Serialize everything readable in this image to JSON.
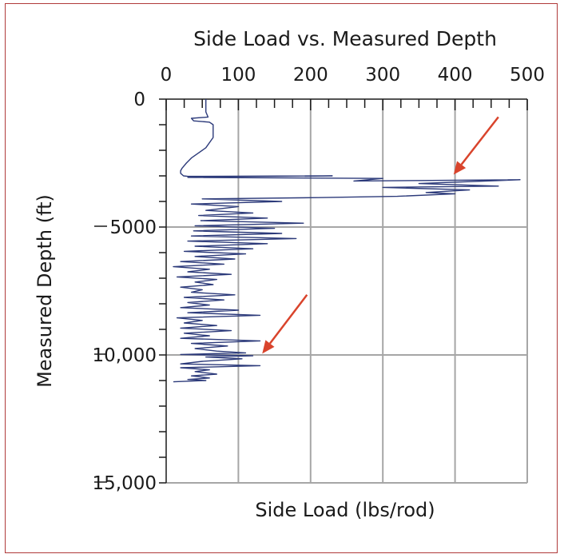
{
  "chart_data": {
    "type": "line",
    "title": "Side Load vs. Measured Depth",
    "xlabel": "Side Load (lbs/rod)",
    "ylabel": "Measured Depth (ft)",
    "xlim": [
      0,
      500
    ],
    "ylim": [
      0,
      -15000
    ],
    "x_ticks": [
      0,
      100,
      200,
      300,
      400,
      500
    ],
    "x_tick_labels": [
      "0",
      "100",
      "200",
      "300",
      "400",
      "500"
    ],
    "y_ticks": [
      0,
      -5000,
      -10000,
      -15000
    ],
    "y_tick_labels": [
      "0",
      "5000",
      "10,000",
      "15,000"
    ],
    "x_axis_position": "top",
    "grid": true,
    "colors": {
      "series": "#2c3a7a",
      "arrow": "#d9442c",
      "grid": "#a6a6a6",
      "frame": "#b03a3a"
    },
    "series": [
      {
        "x": [
          55,
          55,
          58,
          35,
          38,
          60,
          65,
          65,
          55,
          45,
          35,
          28,
          22,
          20,
          20,
          22,
          24,
          30,
          230,
          30,
          300,
          260,
          490,
          350,
          460,
          300,
          420,
          360,
          400,
          320,
          210,
          50,
          160,
          35,
          100,
          55,
          120,
          45,
          140,
          48,
          190,
          40,
          150,
          38,
          160,
          35,
          180,
          30,
          140,
          40,
          120,
          25,
          110,
          40,
          95,
          20,
          80,
          10,
          60,
          30,
          90,
          15,
          70,
          40,
          65,
          20,
          50,
          35,
          95,
          25,
          80,
          30,
          60,
          20,
          100,
          30,
          130,
          15,
          50,
          25,
          70,
          20,
          90,
          25,
          60,
          20,
          130,
          35,
          85,
          40,
          70,
          110,
          20,
          120,
          55,
          105,
          50,
          20,
          130,
          20,
          60,
          40,
          70,
          35,
          60,
          30,
          55,
          10
        ],
        "y": [
          0,
          -500,
          -700,
          -750,
          -850,
          -900,
          -1000,
          -1500,
          -1900,
          -2100,
          -2300,
          -2500,
          -2700,
          -2800,
          -2900,
          -2950,
          -3000,
          -3020,
          -3000,
          -3060,
          -3100,
          -3200,
          -3150,
          -3300,
          -3400,
          -3450,
          -3550,
          -3650,
          -3700,
          -3800,
          -3850,
          -3900,
          -4000,
          -4100,
          -4200,
          -4350,
          -4450,
          -4550,
          -4650,
          -4750,
          -4850,
          -4950,
          -5050,
          -5150,
          -5250,
          -5350,
          -5450,
          -5550,
          -5650,
          -5750,
          -5850,
          -5950,
          -6050,
          -6150,
          -6250,
          -6350,
          -6450,
          -6550,
          -6650,
          -6750,
          -6850,
          -6950,
          -7050,
          -7150,
          -7250,
          -7350,
          -7450,
          -7550,
          -7650,
          -7750,
          -7850,
          -7950,
          -8050,
          -8150,
          -8250,
          -8350,
          -8450,
          -8550,
          -8650,
          -8750,
          -8850,
          -8950,
          -9050,
          -9150,
          -9250,
          -9350,
          -9450,
          -9550,
          -9650,
          -9750,
          -9850,
          -9920,
          -9980,
          -10030,
          -10080,
          -10150,
          -10250,
          -10350,
          -10420,
          -10500,
          -10580,
          -10650,
          -10750,
          -10820,
          -10900,
          -10960,
          -11000,
          -11050
        ]
      }
    ],
    "annotations": [
      {
        "type": "arrow",
        "from": [
          460,
          -700
        ],
        "to": [
          398,
          -2950
        ]
      },
      {
        "type": "arrow",
        "from": [
          195,
          -7650
        ],
        "to": [
          133,
          -9950
        ]
      }
    ]
  }
}
